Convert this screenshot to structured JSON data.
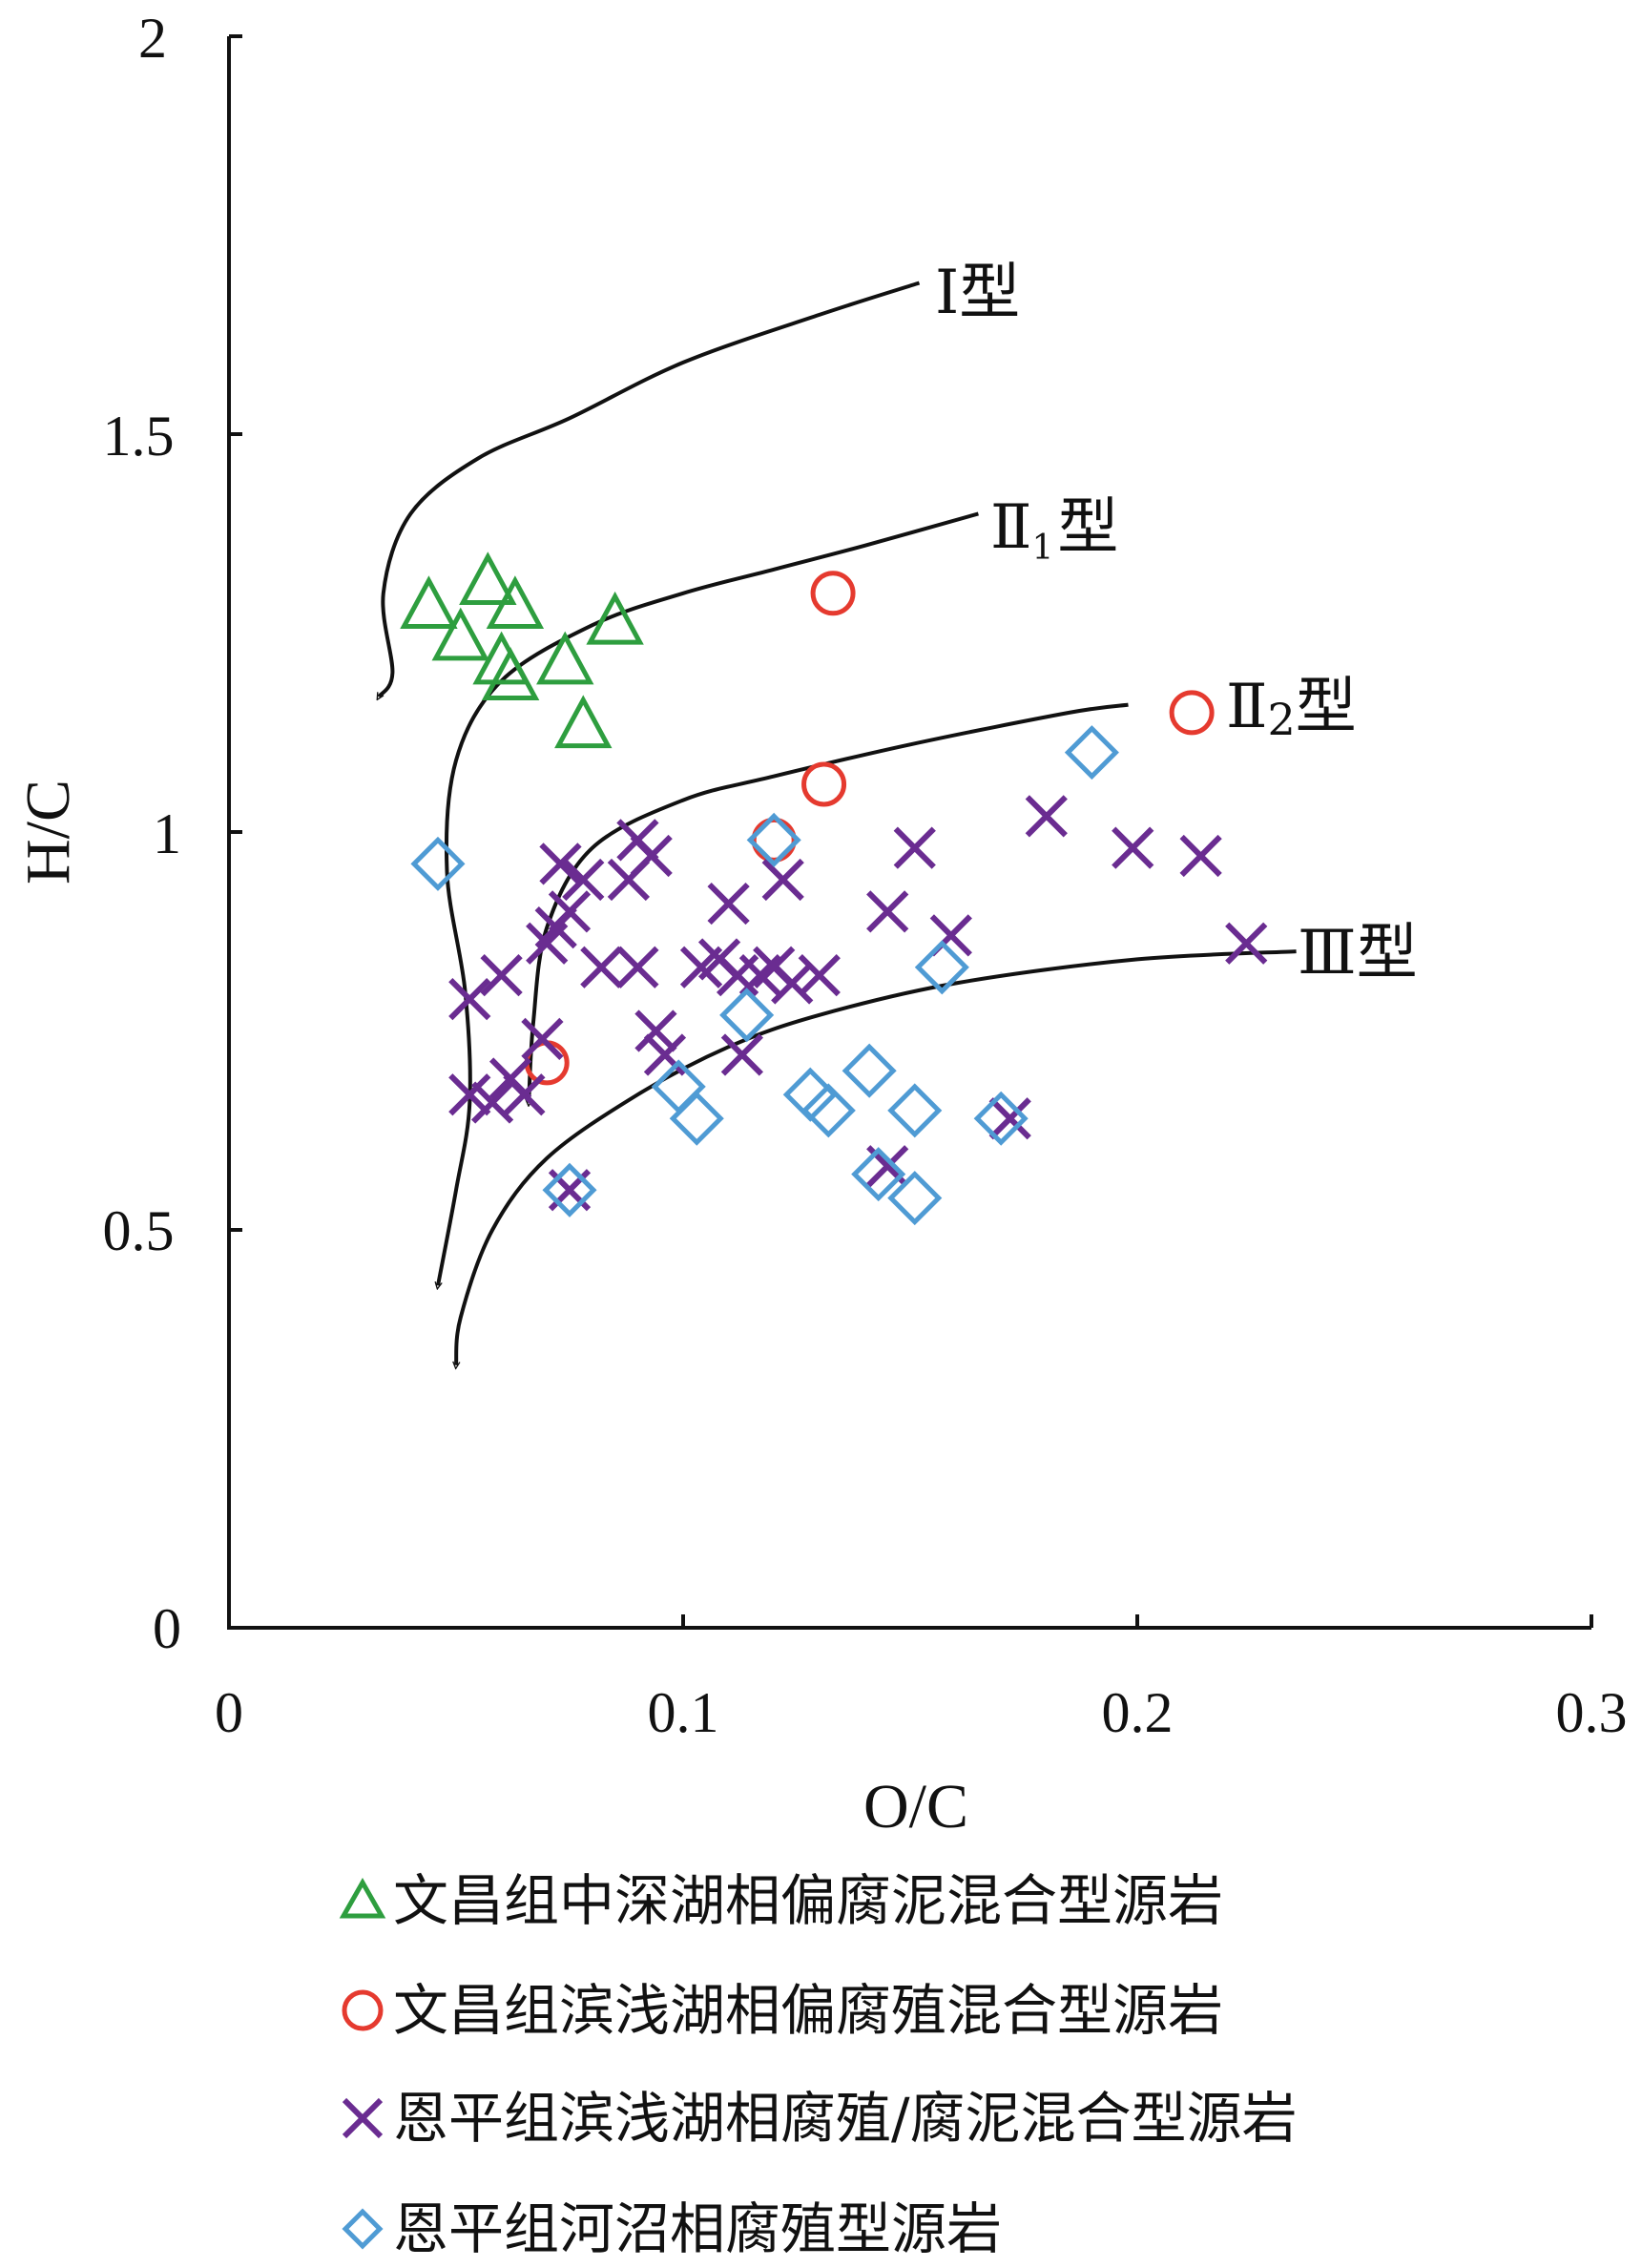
{
  "chart_data": {
    "type": "scatter",
    "xlabel": "O/C",
    "ylabel": "H/C",
    "xlim": [
      0,
      0.3
    ],
    "ylim": [
      0,
      2
    ],
    "xticks": [
      "0",
      "0.1",
      "0.2",
      "0.3"
    ],
    "yticks": [
      "0",
      "0.5",
      "1",
      "1.5",
      "2"
    ],
    "grid": false,
    "legend_position": "bottom",
    "curve_labels": {
      "type1": "Ⅰ型",
      "type2_1_main": "Ⅱ",
      "type2_1_sub": "1",
      "type2_1_suffix": "型",
      "type2_2_main": "Ⅱ",
      "type2_2_sub": "2",
      "type2_2_suffix": "型",
      "type3": "Ⅲ型"
    },
    "curves": [
      {
        "id": "type1",
        "points": [
          [
            0.152,
            1.69
          ],
          [
            0.13,
            1.65
          ],
          [
            0.1,
            1.59
          ],
          [
            0.075,
            1.52
          ],
          [
            0.055,
            1.47
          ],
          [
            0.04,
            1.4
          ],
          [
            0.034,
            1.3
          ],
          [
            0.036,
            1.2
          ],
          [
            0.033,
            1.17
          ]
        ]
      },
      {
        "id": "type2_1",
        "points": [
          [
            0.165,
            1.4
          ],
          [
            0.14,
            1.36
          ],
          [
            0.12,
            1.33
          ],
          [
            0.1,
            1.3
          ],
          [
            0.08,
            1.26
          ],
          [
            0.06,
            1.19
          ],
          [
            0.05,
            1.09
          ],
          [
            0.048,
            0.95
          ],
          [
            0.052,
            0.8
          ],
          [
            0.053,
            0.66
          ],
          [
            0.05,
            0.55
          ],
          [
            0.046,
            0.43
          ]
        ]
      },
      {
        "id": "type2_2",
        "points": [
          [
            0.198,
            1.16
          ],
          [
            0.185,
            1.15
          ],
          [
            0.15,
            1.11
          ],
          [
            0.12,
            1.07
          ],
          [
            0.1,
            1.04
          ],
          [
            0.08,
            0.98
          ],
          [
            0.07,
            0.88
          ],
          [
            0.067,
            0.76
          ],
          [
            0.066,
            0.66
          ]
        ]
      },
      {
        "id": "type3",
        "points": [
          [
            0.235,
            0.85
          ],
          [
            0.2,
            0.84
          ],
          [
            0.16,
            0.81
          ],
          [
            0.13,
            0.77
          ],
          [
            0.11,
            0.73
          ],
          [
            0.09,
            0.67
          ],
          [
            0.07,
            0.59
          ],
          [
            0.058,
            0.5
          ],
          [
            0.051,
            0.39
          ],
          [
            0.05,
            0.33
          ]
        ]
      }
    ],
    "series": [
      {
        "name": "文昌组中深湖相偏腐泥混合型源岩",
        "marker": "triangle",
        "color": "#2E9E3F",
        "points": [
          [
            0.044,
            1.28
          ],
          [
            0.051,
            1.24
          ],
          [
            0.057,
            1.31
          ],
          [
            0.06,
            1.21
          ],
          [
            0.062,
            1.19
          ],
          [
            0.063,
            1.28
          ],
          [
            0.074,
            1.21
          ],
          [
            0.078,
            1.13
          ],
          [
            0.085,
            1.26
          ]
        ]
      },
      {
        "name": "文昌组滨浅湖相偏腐殖混合型源岩",
        "marker": "circle",
        "color": "#E53A2F",
        "points": [
          [
            0.133,
            1.3
          ],
          [
            0.212,
            1.15
          ],
          [
            0.131,
            1.06
          ],
          [
            0.12,
            0.99
          ],
          [
            0.07,
            0.71
          ]
        ]
      },
      {
        "name": "恩平组滨浅湖相腐殖/腐泥混合型源岩",
        "marker": "x",
        "color": "#6A2C91",
        "points": [
          [
            0.053,
            0.79
          ],
          [
            0.06,
            0.82
          ],
          [
            0.053,
            0.67
          ],
          [
            0.058,
            0.66
          ],
          [
            0.062,
            0.69
          ],
          [
            0.065,
            0.67
          ],
          [
            0.069,
            0.74
          ],
          [
            0.07,
            0.86
          ],
          [
            0.072,
            0.88
          ],
          [
            0.073,
            0.96
          ],
          [
            0.075,
            0.9
          ],
          [
            0.078,
            0.94
          ],
          [
            0.082,
            0.83
          ],
          [
            0.088,
            0.94
          ],
          [
            0.09,
            0.83
          ],
          [
            0.09,
            0.99
          ],
          [
            0.093,
            0.97
          ],
          [
            0.094,
            0.75
          ],
          [
            0.096,
            0.72
          ],
          [
            0.104,
            0.83
          ],
          [
            0.108,
            0.84
          ],
          [
            0.11,
            0.91
          ],
          [
            0.112,
            0.82
          ],
          [
            0.113,
            0.72
          ],
          [
            0.117,
            0.82
          ],
          [
            0.12,
            0.83
          ],
          [
            0.122,
            0.94
          ],
          [
            0.124,
            0.81
          ],
          [
            0.13,
            0.82
          ],
          [
            0.145,
            0.9
          ],
          [
            0.151,
            0.98
          ],
          [
            0.159,
            0.87
          ],
          [
            0.18,
            1.02
          ],
          [
            0.199,
            0.98
          ],
          [
            0.214,
            0.97
          ],
          [
            0.224,
            0.86
          ],
          [
            0.145,
            0.58
          ],
          [
            0.172,
            0.64
          ],
          [
            0.075,
            0.55
          ]
        ]
      },
      {
        "name": "恩平组河沼相腐殖型源岩",
        "marker": "diamond",
        "color": "#4F9BD4",
        "points": [
          [
            0.046,
            0.96
          ],
          [
            0.19,
            1.1
          ],
          [
            0.12,
            0.99
          ],
          [
            0.157,
            0.83
          ],
          [
            0.114,
            0.77
          ],
          [
            0.099,
            0.68
          ],
          [
            0.103,
            0.64
          ],
          [
            0.141,
            0.7
          ],
          [
            0.128,
            0.67
          ],
          [
            0.132,
            0.65
          ],
          [
            0.151,
            0.65
          ],
          [
            0.143,
            0.57
          ],
          [
            0.151,
            0.54
          ],
          [
            0.17,
            0.64
          ],
          [
            0.075,
            0.55
          ]
        ]
      }
    ]
  }
}
